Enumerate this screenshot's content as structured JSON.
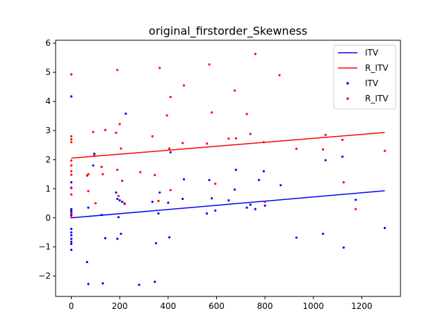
{
  "chart_data": {
    "type": "scatter",
    "title": "original_firstorder_Skewness",
    "xlabel": "",
    "ylabel": "",
    "xlim": [
      -65,
      1360
    ],
    "ylim": [
      -2.7,
      6.1
    ],
    "xticks": [
      0,
      200,
      400,
      600,
      800,
      1000,
      1200
    ],
    "yticks": [
      -2,
      -1,
      0,
      1,
      2,
      3,
      4,
      5,
      6
    ],
    "ytick_labels": [
      "−2",
      "−1",
      "0",
      "1",
      "2",
      "3",
      "4",
      "5",
      "6"
    ],
    "legend": {
      "placement": "top-right",
      "entries": [
        {
          "label": "ITV",
          "kind": "line",
          "color": "#0000ff"
        },
        {
          "label": "R_ITV",
          "kind": "line",
          "color": "#ff0000"
        },
        {
          "label": "ITV",
          "kind": "marker",
          "color": "#0000ff"
        },
        {
          "label": "R_ITV",
          "kind": "marker",
          "color": "#ff0000"
        }
      ]
    },
    "series": [
      {
        "name": "ITV",
        "kind": "line",
        "color": "#0000ff",
        "x": [
          0,
          1295
        ],
        "y": [
          0.0,
          0.93
        ]
      },
      {
        "name": "R_ITV",
        "kind": "line",
        "color": "#ff0000",
        "x": [
          0,
          1295
        ],
        "y": [
          2.05,
          2.93
        ]
      },
      {
        "name": "ITV",
        "kind": "scatter",
        "color": "#0000ff",
        "points": [
          [
            0,
            4.17
          ],
          [
            0,
            1.22
          ],
          [
            0,
            1.04
          ],
          [
            0,
            0.3
          ],
          [
            0,
            0.25
          ],
          [
            0,
            0.2
          ],
          [
            0,
            0.1
          ],
          [
            0,
            -0.38
          ],
          [
            0,
            -0.5
          ],
          [
            0,
            -0.6
          ],
          [
            0,
            -0.72
          ],
          [
            0,
            -0.82
          ],
          [
            0,
            -0.9
          ],
          [
            0,
            -1.1
          ],
          [
            65,
            -1.52
          ],
          [
            70,
            -2.27
          ],
          [
            70,
            0.35
          ],
          [
            90,
            1.8
          ],
          [
            95,
            2.2
          ],
          [
            125,
            0.1
          ],
          [
            130,
            -2.25
          ],
          [
            140,
            -0.7
          ],
          [
            185,
            0.87
          ],
          [
            190,
            -0.72
          ],
          [
            190,
            0.65
          ],
          [
            195,
            0.02
          ],
          [
            200,
            0.6
          ],
          [
            205,
            -0.55
          ],
          [
            210,
            0.55
          ],
          [
            220,
            0.48
          ],
          [
            225,
            3.58
          ],
          [
            280,
            -2.3
          ],
          [
            335,
            0.55
          ],
          [
            345,
            -2.2
          ],
          [
            350,
            -0.87
          ],
          [
            360,
            0.15
          ],
          [
            365,
            0.87
          ],
          [
            400,
            0.52
          ],
          [
            405,
            -0.67
          ],
          [
            410,
            2.25
          ],
          [
            460,
            0.65
          ],
          [
            465,
            1.32
          ],
          [
            560,
            0.15
          ],
          [
            570,
            1.3
          ],
          [
            580,
            0.67
          ],
          [
            595,
            0.25
          ],
          [
            650,
            0.6
          ],
          [
            675,
            0.97
          ],
          [
            680,
            1.65
          ],
          [
            725,
            0.35
          ],
          [
            740,
            0.45
          ],
          [
            760,
            0.3
          ],
          [
            775,
            1.3
          ],
          [
            795,
            1.6
          ],
          [
            800,
            0.42
          ],
          [
            865,
            1.12
          ],
          [
            930,
            -0.68
          ],
          [
            1040,
            -0.55
          ],
          [
            1050,
            1.98
          ],
          [
            1120,
            2.1
          ],
          [
            1125,
            -1.02
          ],
          [
            1175,
            0.62
          ],
          [
            1295,
            -0.35
          ]
        ]
      },
      {
        "name": "R_ITV",
        "kind": "scatter",
        "color": "#ff0000",
        "points": [
          [
            0,
            4.93
          ],
          [
            0,
            2.8
          ],
          [
            0,
            2.7
          ],
          [
            0,
            2.6
          ],
          [
            0,
            1.97
          ],
          [
            0,
            1.8
          ],
          [
            0,
            1.6
          ],
          [
            0,
            1.48
          ],
          [
            0,
            1.02
          ],
          [
            0,
            0.8
          ],
          [
            0,
            0.15
          ],
          [
            0,
            0.02
          ],
          [
            65,
            1.45
          ],
          [
            70,
            1.5
          ],
          [
            70,
            0.92
          ],
          [
            90,
            2.95
          ],
          [
            95,
            2.15
          ],
          [
            100,
            0.5
          ],
          [
            125,
            1.75
          ],
          [
            130,
            1.5
          ],
          [
            140,
            3.02
          ],
          [
            185,
            2.92
          ],
          [
            190,
            5.08
          ],
          [
            190,
            1.65
          ],
          [
            195,
            0.75
          ],
          [
            200,
            3.22
          ],
          [
            205,
            2.38
          ],
          [
            210,
            1.27
          ],
          [
            220,
            0.5
          ],
          [
            285,
            1.57
          ],
          [
            335,
            2.8
          ],
          [
            345,
            1.47
          ],
          [
            360,
            0.58
          ],
          [
            365,
            5.15
          ],
          [
            395,
            3.52
          ],
          [
            405,
            2.38
          ],
          [
            410,
            4.15
          ],
          [
            410,
            0.95
          ],
          [
            460,
            2.57
          ],
          [
            465,
            4.55
          ],
          [
            560,
            2.55
          ],
          [
            570,
            5.27
          ],
          [
            580,
            3.62
          ],
          [
            595,
            1.17
          ],
          [
            650,
            2.72
          ],
          [
            675,
            4.37
          ],
          [
            680,
            2.73
          ],
          [
            725,
            3.57
          ],
          [
            740,
            2.88
          ],
          [
            760,
            5.63
          ],
          [
            795,
            2.6
          ],
          [
            800,
            0.55
          ],
          [
            860,
            4.9
          ],
          [
            930,
            2.37
          ],
          [
            1040,
            2.35
          ],
          [
            1050,
            2.85
          ],
          [
            1120,
            2.68
          ],
          [
            1125,
            1.22
          ],
          [
            1175,
            0.3
          ],
          [
            1295,
            2.3
          ]
        ]
      }
    ]
  }
}
